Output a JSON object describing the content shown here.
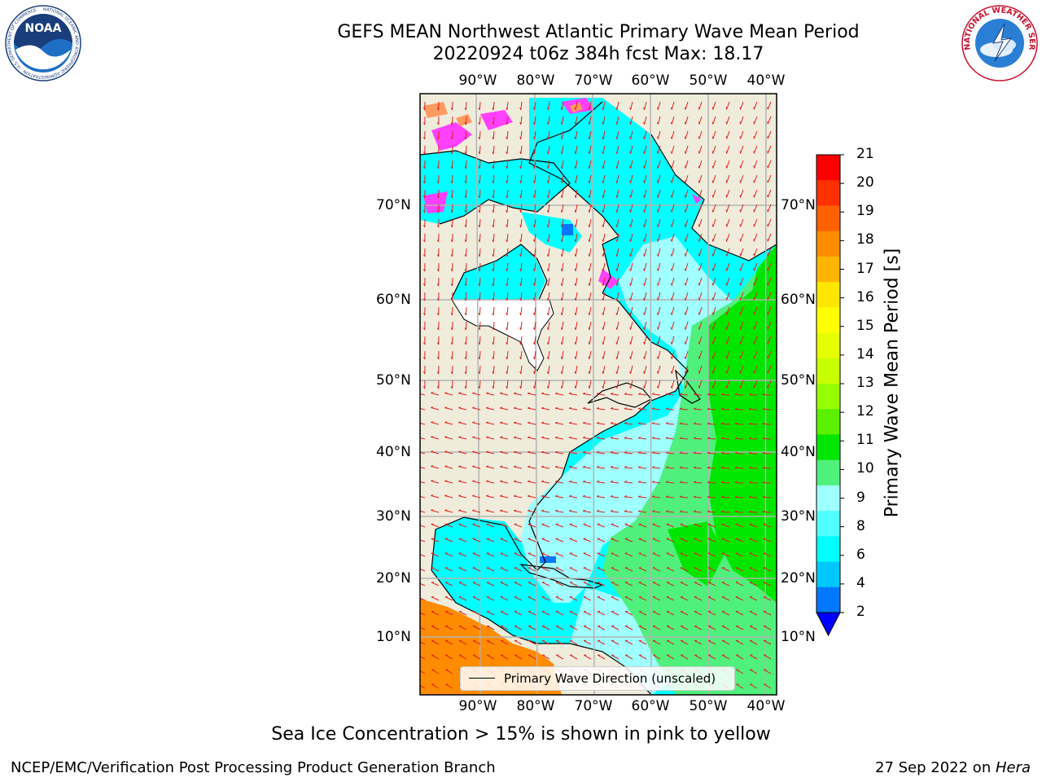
{
  "header": {
    "title": "GEFS MEAN Northwest Atlantic Primary Wave Mean Period",
    "subtitle": "20220924 t06z 384h fcst   Max: 18.17"
  },
  "logos": {
    "left": "NOAA",
    "left_ring": "NATIONAL OCEANIC AND ATMOSPHERIC ADMINISTRATION · U.S. DEPARTMENT OF COMMERCE",
    "right_ring": "NATIONAL WEATHER SERVICE"
  },
  "map": {
    "lon_labels": [
      "90°W",
      "80°W",
      "70°W",
      "60°W",
      "50°W",
      "40°W"
    ],
    "lat_labels": [
      "70°N",
      "60°N",
      "50°N",
      "40°N",
      "30°N",
      "20°N",
      "10°N"
    ],
    "legend_label": "Primary Wave Direction (unscaled)",
    "colors": {
      "land": "#efecdc",
      "arrow": "#e0201b",
      "grid": "#b3b3b3"
    }
  },
  "colorbar": {
    "title": "Primary Wave Mean Period [s]",
    "ticks": [
      "21",
      "20",
      "19",
      "18",
      "17",
      "16",
      "15",
      "14",
      "13",
      "12",
      "11",
      "10",
      "9",
      "8",
      "6",
      "4",
      "2"
    ],
    "colors": [
      "#ff0000",
      "#ff3000",
      "#ff6000",
      "#ff8c00",
      "#ffb400",
      "#ffe600",
      "#ffff00",
      "#e6ff00",
      "#c8ff00",
      "#96ff00",
      "#5af000",
      "#00e600",
      "#50f07d",
      "#a0ffff",
      "#50ffff",
      "#00ffff",
      "#00c8ff",
      "#0078ff",
      "#0000ff"
    ]
  },
  "notes": {
    "sea_ice": "Sea Ice Concentration > 15% is shown in pink to yellow",
    "branch": "NCEP/EMC/Verification Post Processing Product Generation Branch",
    "date": "27 Sep 2022 on ",
    "machine": "Hera"
  }
}
